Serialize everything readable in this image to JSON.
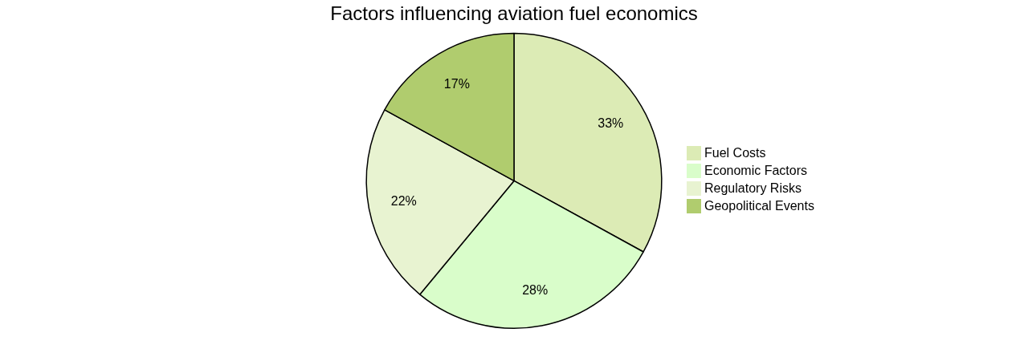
{
  "chart_data": {
    "type": "pie",
    "title": "Factors influencing aviation fuel economics",
    "categories": [
      "Fuel Costs",
      "Economic Factors",
      "Regulatory Risks",
      "Geopolitical Events"
    ],
    "values": [
      33,
      28,
      22,
      17
    ],
    "value_labels": [
      "33%",
      "28%",
      "22%",
      "17%"
    ],
    "colors": [
      "#dcebb5",
      "#d9fdca",
      "#e8f3d1",
      "#b0cc6e"
    ],
    "data_labels": true,
    "legend": "right"
  }
}
